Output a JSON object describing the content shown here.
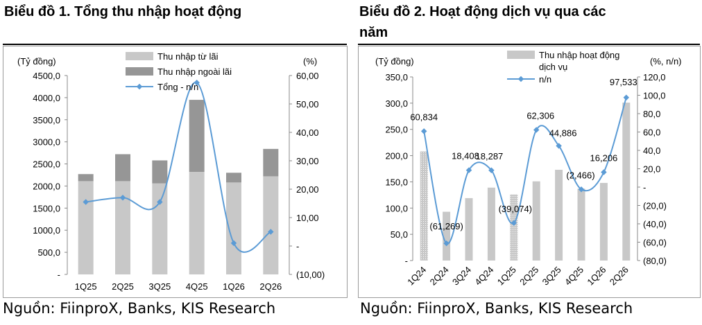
{
  "page": {
    "left_title": "Biểu đồ 1. Tổng thu nhập hoạt động",
    "right_title_line1": "Biểu đồ 2. Hoạt động dịch vụ qua các",
    "right_title_line2": "năm",
    "left_source": "Nguồn: FiinproX, Banks, KIS Research",
    "right_source": "Nguồn: FiinproX, Banks, KIS Research"
  },
  "chart_data": [
    {
      "type": "bar",
      "stacked": true,
      "title": "Biểu đồ 1. Tổng thu nhập hoạt động",
      "ylabel": "(Tỷ đồng)",
      "y2label": "(%)",
      "categories": [
        "1Q25",
        "2Q25",
        "3Q25",
        "4Q25",
        "1Q26",
        "2Q26"
      ],
      "ylim": [
        0,
        4500
      ],
      "y2lim": [
        -10,
        60
      ],
      "y_ticks": [
        "-",
        "500,0",
        "1000,0",
        "1500,0",
        "2000,0",
        "2500,0",
        "3000,0",
        "3500,0",
        "4000,0",
        "4500,0"
      ],
      "y2_ticks": [
        "(10,00)",
        "-",
        "10,00",
        "20,00",
        "30,00",
        "40,00",
        "50,00",
        "60,00"
      ],
      "series": [
        {
          "name": "Thu nhập từ lãi",
          "type": "bar",
          "color": "#c8c8c8",
          "values": [
            2110,
            2110,
            2060,
            2320,
            2080,
            2220
          ]
        },
        {
          "name": "Thu nhập ngoài lãi",
          "type": "bar",
          "color": "#969696",
          "values": [
            160,
            610,
            520,
            1630,
            220,
            620
          ]
        },
        {
          "name": "Tổng - n/n",
          "type": "line",
          "axis": "y2",
          "color": "#5b9bd5",
          "values": [
            15.5,
            17.0,
            15.5,
            57.5,
            1.0,
            5.0
          ]
        }
      ],
      "legend_position": "top",
      "grid": false
    },
    {
      "type": "bar",
      "title": "Biểu đồ 2. Hoạt động dịch vụ qua các năm",
      "ylabel": "(Tỷ đồng)",
      "y2label": "(%, n/n)",
      "categories": [
        "1Q24",
        "2Q24",
        "3Q24",
        "4Q24",
        "1Q25",
        "2Q25",
        "3Q25",
        "4Q25",
        "1Q26",
        "2Q26"
      ],
      "ylim": [
        0,
        350
      ],
      "y2lim": [
        -80,
        120
      ],
      "y_ticks": [
        "-",
        "50,0",
        "100,0",
        "150,0",
        "200,0",
        "250,0",
        "300,0",
        "350,0"
      ],
      "y2_ticks": [
        "(80,0)",
        "(60,0)",
        "(40,0)",
        "(20,0)",
        "-",
        "20,0",
        "40,0",
        "60,0",
        "80,0",
        "100,0",
        "120,0"
      ],
      "series": [
        {
          "name": "Thu nhập hoạt động dịch vụ",
          "type": "bar",
          "color": "#c8c8c8",
          "values": [
            208,
            93,
            119,
            139,
            126,
            151,
            173,
            137,
            148,
            301
          ]
        },
        {
          "name": "n/n",
          "type": "line",
          "axis": "y2",
          "color": "#5b9bd5",
          "values": [
            60.834,
            -61.269,
            18.408,
            18.287,
            -39.074,
            62.306,
            44.886,
            -2.466,
            16.206,
            97.533
          ]
        }
      ],
      "data_labels": [
        "60,834",
        "(61,269)",
        "18,408",
        "18,287",
        "(39,074)",
        "62,306",
        "44,886",
        "(2,466)",
        "16,206",
        "97,533"
      ],
      "legend_position": "top",
      "grid": false
    }
  ]
}
